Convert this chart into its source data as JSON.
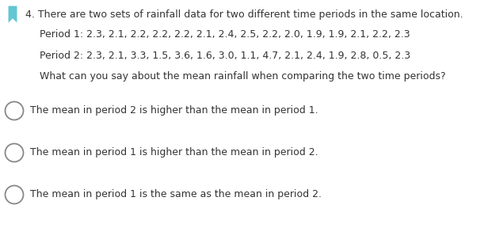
{
  "background_color": "#ffffff",
  "text_color": "#333333",
  "bookmark_color": "#62c6d4",
  "question_number": "4.",
  "question_text": "There are two sets of rainfall data for two different time periods in the same location.",
  "period1_label": "Period 1:",
  "period1_data": "2.3, 2.1, 2.2, 2.2, 2.2, 2.1, 2.4, 2.5, 2.2, 2.0, 1.9, 1.9, 2.1, 2.2, 2.3",
  "period2_label": "Period 2:",
  "period2_data": "2.3, 2.1, 3.3, 1.5, 3.6, 1.6, 3.0, 1.1, 4.7, 2.1, 2.4, 1.9, 2.8, 0.5, 2.3",
  "sub_question": "What can you say about the mean rainfall when comparing the two time periods?",
  "options": [
    "The mean in period 2 is higher than the mean in period 1.",
    "The mean in period 1 is higher than the mean in period 2.",
    "The mean in period 1 is the same as the mean in period 2."
  ],
  "font_size": 9.0,
  "circle_color": "#888888",
  "circle_linewidth": 1.3
}
